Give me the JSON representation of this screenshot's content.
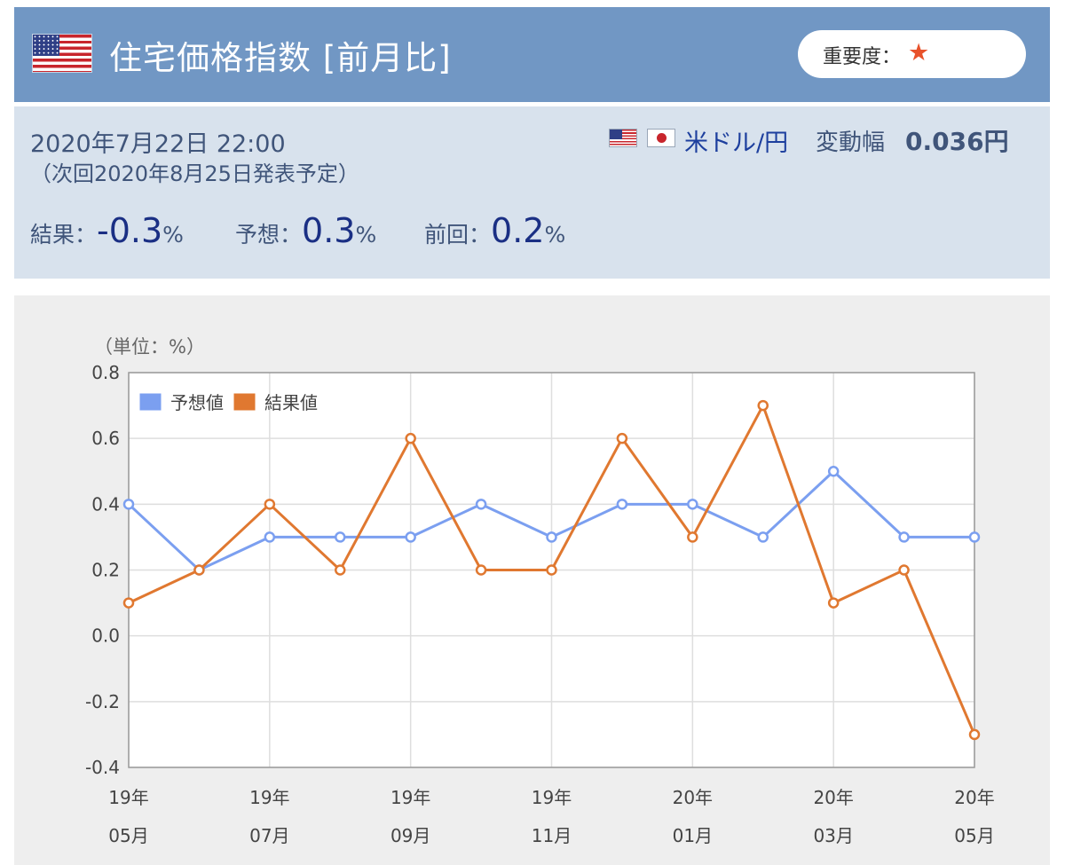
{
  "header": {
    "title": "住宅価格指数 [前月比]",
    "importance_label": "重要度：",
    "importance_icon": "star-icon",
    "flag_icon": "us-flag-icon"
  },
  "info": {
    "datetime": "2020年7月22日 22:00",
    "next_release": "（次回2020年8月25日発表予定）",
    "pair": "米ドル/円",
    "range_label": "変動幅",
    "range_value": "0.036円",
    "result_label": "結果：",
    "result_value": "-0.3",
    "forecast_label": "予想：",
    "forecast_value": "0.3",
    "previous_label": "前回：",
    "previous_value": "0.2",
    "unit": "%"
  },
  "colors": {
    "header_bg": "#7197c4",
    "info_bg": "#d8e2ed",
    "forecast": "#7b9ff0",
    "result": "#e07830",
    "star": "#e8522b"
  },
  "chart_data": {
    "type": "line",
    "unit_label": "（単位：%）",
    "x": [
      "19年05月",
      "19年06月",
      "19年07月",
      "19年08月",
      "19年09月",
      "19年10月",
      "19年11月",
      "19年12月",
      "20年01月",
      "20年02月",
      "20年03月",
      "20年04月",
      "20年05月"
    ],
    "x_tick_labels": [
      {
        "top": "19年",
        "bottom": "05月"
      },
      {
        "top": "19年",
        "bottom": "07月"
      },
      {
        "top": "19年",
        "bottom": "09月"
      },
      {
        "top": "19年",
        "bottom": "11月"
      },
      {
        "top": "20年",
        "bottom": "01月"
      },
      {
        "top": "20年",
        "bottom": "03月"
      },
      {
        "top": "20年",
        "bottom": "05月"
      }
    ],
    "y_ticks": [
      "0.8",
      "0.6",
      "0.4",
      "0.2",
      "0.0",
      "-0.2",
      "-0.4"
    ],
    "ylim": [
      -0.4,
      0.8
    ],
    "legend_position": "top-left",
    "series": [
      {
        "name": "予想値",
        "color": "#7b9ff0",
        "values": [
          0.4,
          0.2,
          0.3,
          0.3,
          0.3,
          0.4,
          0.3,
          0.4,
          0.4,
          0.3,
          0.5,
          0.3,
          0.3
        ]
      },
      {
        "name": "結果値",
        "color": "#e07830",
        "values": [
          0.1,
          0.2,
          0.4,
          0.2,
          0.6,
          0.2,
          0.2,
          0.6,
          0.3,
          0.7,
          0.1,
          0.2,
          -0.3
        ]
      }
    ]
  }
}
